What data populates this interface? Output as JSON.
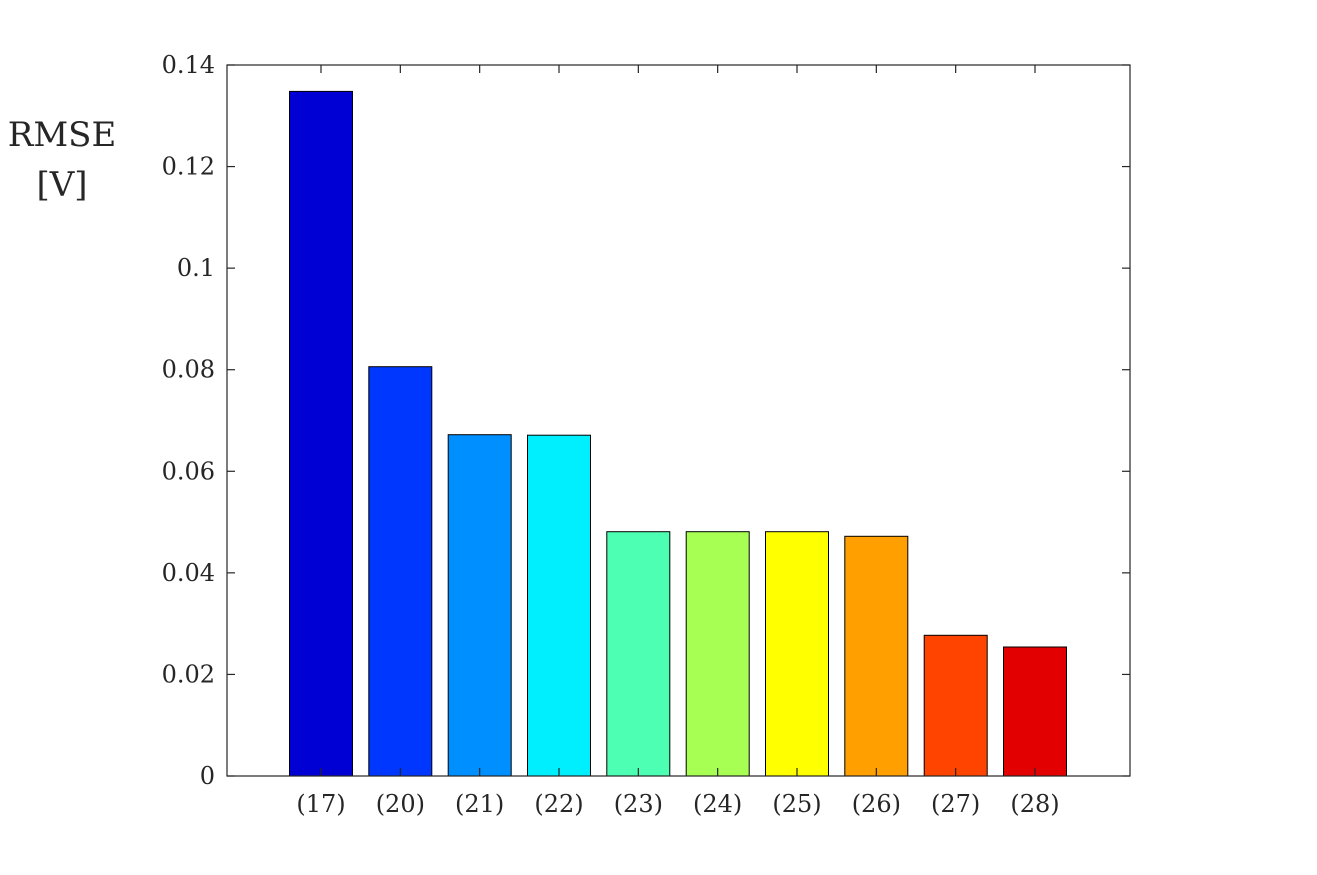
{
  "chart_data": {
    "type": "bar",
    "categories": [
      "(17)",
      "(20)",
      "(21)",
      "(22)",
      "(23)",
      "(24)",
      "(25)",
      "(26)",
      "(27)",
      "(28)"
    ],
    "values": [
      0.1348,
      0.0806,
      0.0672,
      0.0671,
      0.0481,
      0.0481,
      0.0481,
      0.0472,
      0.0277,
      0.0254
    ],
    "bar_colors": [
      "#0000d5",
      "#0037ff",
      "#008fff",
      "#00efff",
      "#4dffb2",
      "#a7ff53",
      "#ffff00",
      "#ff9f00",
      "#ff4400",
      "#e30000"
    ],
    "ylabel_lines": [
      "RMSE",
      "[V]"
    ],
    "ylim": [
      0,
      0.14
    ],
    "yticks": [
      "0",
      "0.02",
      "0.04",
      "0.06",
      "0.08",
      "0.1",
      "0.12",
      "0.14"
    ],
    "ytick_values": [
      0,
      0.02,
      0.04,
      0.06,
      0.08,
      0.1,
      0.12,
      0.14
    ],
    "grid": false,
    "box": true
  }
}
